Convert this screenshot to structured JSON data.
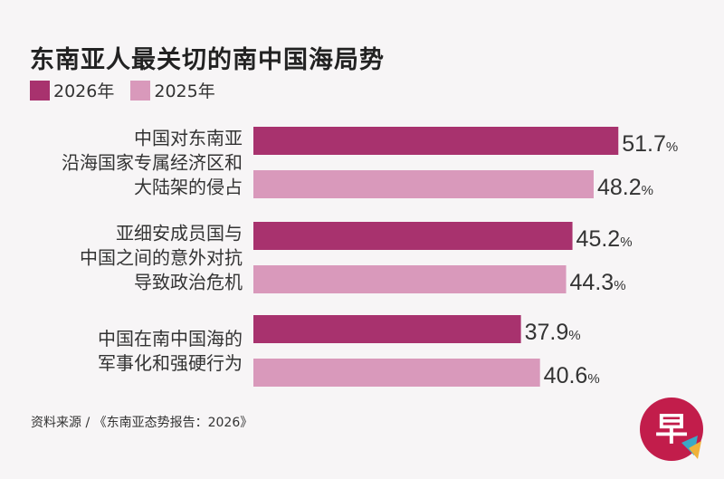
{
  "title": "东南亚人最关切的南中国海局势",
  "source": "资料来源 / 《东南亚态势报告：2026》",
  "colors": {
    "s2026": "#a8326e",
    "s2025": "#d999bb"
  },
  "logo": {
    "glyph": "早",
    "icon": "zaobao-logo-icon"
  },
  "chart_data": {
    "type": "bar",
    "orientation": "horizontal",
    "value_suffix": "%",
    "categories": [
      [
        "中国对东南亚",
        "沿海国家专属经济区和",
        "大陆架的侵占"
      ],
      [
        "亚细安成员国与",
        "中国之间的意外对抗",
        "导致政治危机"
      ],
      [
        "中国在南中国海的",
        "军事化和强硬行为"
      ]
    ],
    "series": [
      {
        "name": "2026年",
        "values": [
          51.7,
          45.2,
          37.9
        ]
      },
      {
        "name": "2025年",
        "values": [
          48.2,
          44.3,
          40.6
        ]
      }
    ],
    "xlim": [
      0,
      55
    ],
    "grid": false,
    "legend": "top-left"
  }
}
